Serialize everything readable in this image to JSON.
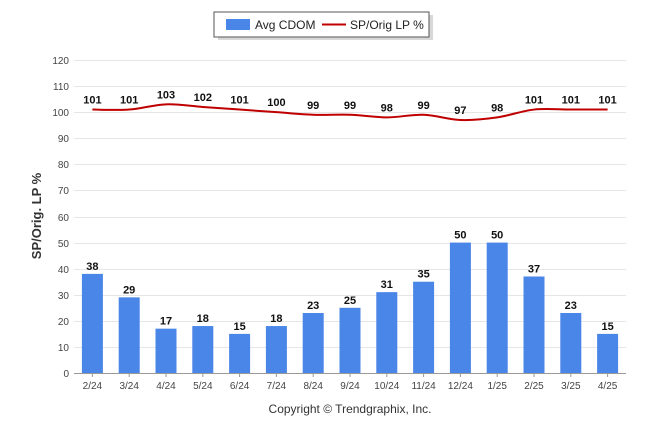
{
  "chart_data": {
    "type": "bar",
    "title": "",
    "xlabel": "",
    "ylabel": "SP/Orig. LP %",
    "ylim": [
      0,
      120
    ],
    "yticks": [
      0,
      10,
      20,
      30,
      40,
      50,
      60,
      70,
      80,
      90,
      100,
      110,
      120
    ],
    "grid": true,
    "legend_position": "top-center",
    "categories": [
      "2/24",
      "3/24",
      "4/24",
      "5/24",
      "6/24",
      "7/24",
      "8/24",
      "9/24",
      "10/24",
      "11/24",
      "12/24",
      "1/25",
      "2/25",
      "3/25",
      "4/25"
    ],
    "series": [
      {
        "name": "Avg CDOM",
        "type": "bar",
        "color": "#4a86e8",
        "values": [
          38,
          29,
          17,
          18,
          15,
          18,
          23,
          25,
          31,
          35,
          50,
          50,
          37,
          23,
          15
        ]
      },
      {
        "name": "SP/Orig LP %",
        "type": "line",
        "color": "#c00000",
        "values": [
          101,
          101,
          103,
          102,
          101,
          100,
          99,
          99,
          98,
          99,
          97,
          98,
          101,
          101,
          101
        ]
      }
    ]
  },
  "footer": {
    "copyright": "Copyright © Trendgraphix, Inc."
  }
}
